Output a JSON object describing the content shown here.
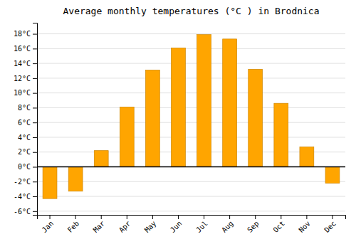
{
  "chart_data": {
    "type": "bar",
    "title": "Average monthly temperatures (°C ) in Brodnica",
    "categories": [
      "Jan",
      "Feb",
      "Mar",
      "Apr",
      "May",
      "Jun",
      "Jul",
      "Aug",
      "Sep",
      "Oct",
      "Nov",
      "Dec"
    ],
    "values": [
      -4.3,
      -3.3,
      2.2,
      8.1,
      13.1,
      16.1,
      17.9,
      17.3,
      13.2,
      8.6,
      2.7,
      -2.2
    ],
    "color": "#FFA500",
    "ylim": [
      -6.5,
      19.5
    ],
    "yticks": [
      {
        "value": -6,
        "label": "-6°C"
      },
      {
        "value": -4,
        "label": "-4°C"
      },
      {
        "value": -2,
        "label": "-2°C"
      },
      {
        "value": 0,
        "label": "0°C"
      },
      {
        "value": 2,
        "label": "2°C"
      },
      {
        "value": 4,
        "label": "4°C"
      },
      {
        "value": 6,
        "label": "6°C"
      },
      {
        "value": 8,
        "label": "8°C"
      },
      {
        "value": 10,
        "label": "10°C"
      },
      {
        "value": 12,
        "label": "12°C"
      },
      {
        "value": 14,
        "label": "14°C"
      },
      {
        "value": 16,
        "label": "16°C"
      },
      {
        "value": 18,
        "label": "18°C"
      }
    ],
    "grid": true
  }
}
